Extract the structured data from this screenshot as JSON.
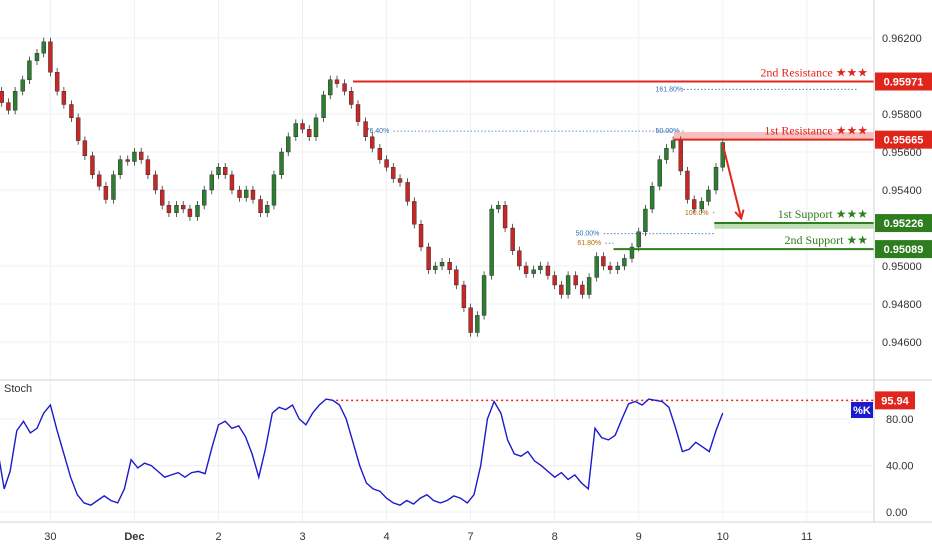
{
  "chart_data": {
    "type": "candlestick",
    "price_axis": {
      "ticks": [
        "0.96200",
        "0.95800",
        "0.95600",
        "0.95400",
        "0.95000",
        "0.94800",
        "0.94600"
      ],
      "tick_values": [
        0.962,
        0.958,
        0.956,
        0.954,
        0.95,
        0.948,
        0.946
      ],
      "range": [
        0.944,
        0.964
      ]
    },
    "time_axis": {
      "labels": [
        "30",
        "Dec",
        "2",
        "3",
        "4",
        "7",
        "8",
        "9",
        "10",
        "11"
      ],
      "positions": [
        0,
        1,
        2,
        3,
        4,
        5,
        6,
        7,
        8,
        9
      ],
      "range": [
        -0.6,
        9.8
      ]
    },
    "levels": [
      {
        "label": "2nd Resistance ★★★",
        "value": "0.95971",
        "price": 0.95971,
        "from": 3.6,
        "color": "#e0261c"
      },
      {
        "label": "1st Resistance ★★★",
        "value": "0.95665",
        "price": 0.95665,
        "from": 7.42,
        "color": "#e0261c"
      },
      {
        "label": "1st Support ★★★",
        "value": "0.95226",
        "price": 0.95226,
        "from": 7.9,
        "color": "#2e7d1e"
      },
      {
        "label": "2nd Support ★★",
        "value": "0.95089",
        "price": 0.95089,
        "from": 6.7,
        "color": "#2e7d1e"
      }
    ],
    "fib_labels": [
      {
        "text": "76.40%",
        "price": 0.9571,
        "x": 3.75,
        "line_to": 7.4
      },
      {
        "text": "161.80%",
        "price": 0.9593,
        "x": 7.2,
        "line_to": 9.6
      },
      {
        "text": "50.00%",
        "price": 0.9571,
        "x": 7.2,
        "line_to": 7.42
      },
      {
        "text": "50.00%",
        "price": 0.9517,
        "x": 6.25,
        "line_to": 7.9
      },
      {
        "text": "61.80%",
        "price": 0.9512,
        "x": 6.27,
        "line_to": 6.7
      },
      {
        "text": "100.0%",
        "price": 0.9528,
        "x": 7.55,
        "line_to": 7.9
      }
    ],
    "arrow": {
      "from": {
        "x": 8.0,
        "price": 0.9564
      },
      "to": {
        "x": 8.22,
        "price": 0.9525
      },
      "color": "#e0261c"
    },
    "candles_ohlc_mid": [
      [
        -0.75,
        0.9594
      ],
      [
        -0.66,
        0.9592
      ],
      [
        -0.58,
        0.9586
      ],
      [
        -0.5,
        0.9582
      ],
      [
        -0.42,
        0.9592
      ],
      [
        -0.33,
        0.9598
      ],
      [
        -0.25,
        0.9608
      ],
      [
        -0.16,
        0.9612
      ],
      [
        -0.08,
        0.9618
      ],
      [
        0.0,
        0.9602
      ],
      [
        0.08,
        0.9592
      ],
      [
        0.16,
        0.9585
      ],
      [
        0.25,
        0.9578
      ],
      [
        0.33,
        0.9566
      ],
      [
        0.41,
        0.9558
      ],
      [
        0.5,
        0.9548
      ],
      [
        0.58,
        0.9542
      ],
      [
        0.66,
        0.9535
      ],
      [
        0.75,
        0.9548
      ],
      [
        0.83,
        0.9556
      ],
      [
        0.92,
        0.9555
      ],
      [
        1.0,
        0.956
      ],
      [
        1.08,
        0.9556
      ],
      [
        1.16,
        0.9548
      ],
      [
        1.25,
        0.954
      ],
      [
        1.33,
        0.9532
      ],
      [
        1.41,
        0.9528
      ],
      [
        1.5,
        0.9532
      ],
      [
        1.58,
        0.953
      ],
      [
        1.66,
        0.9526
      ],
      [
        1.75,
        0.9532
      ],
      [
        1.83,
        0.954
      ],
      [
        1.92,
        0.9548
      ],
      [
        2.0,
        0.9552
      ],
      [
        2.08,
        0.9548
      ],
      [
        2.16,
        0.954
      ],
      [
        2.25,
        0.9536
      ],
      [
        2.33,
        0.954
      ],
      [
        2.41,
        0.9535
      ],
      [
        2.5,
        0.9528
      ],
      [
        2.58,
        0.9532
      ],
      [
        2.66,
        0.9548
      ],
      [
        2.75,
        0.956
      ],
      [
        2.83,
        0.9568
      ],
      [
        2.92,
        0.9575
      ],
      [
        3.0,
        0.9572
      ],
      [
        3.08,
        0.9568
      ],
      [
        3.16,
        0.9578
      ],
      [
        3.25,
        0.959
      ],
      [
        3.33,
        0.9598
      ],
      [
        3.41,
        0.9596
      ],
      [
        3.5,
        0.9592
      ],
      [
        3.58,
        0.9585
      ],
      [
        3.66,
        0.9576
      ],
      [
        3.75,
        0.9568
      ],
      [
        3.83,
        0.9562
      ],
      [
        3.92,
        0.9556
      ],
      [
        4.0,
        0.9552
      ],
      [
        4.08,
        0.9546
      ],
      [
        4.16,
        0.9544
      ],
      [
        4.25,
        0.9534
      ],
      [
        4.33,
        0.9522
      ],
      [
        4.41,
        0.951
      ],
      [
        4.5,
        0.9498
      ],
      [
        4.58,
        0.95
      ],
      [
        4.66,
        0.9502
      ],
      [
        4.75,
        0.9498
      ],
      [
        4.83,
        0.949
      ],
      [
        4.92,
        0.9478
      ],
      [
        5.0,
        0.9465
      ],
      [
        5.08,
        0.9474
      ],
      [
        5.16,
        0.9495
      ],
      [
        5.25,
        0.953
      ],
      [
        5.33,
        0.9532
      ],
      [
        5.41,
        0.952
      ],
      [
        5.5,
        0.9508
      ],
      [
        5.58,
        0.95
      ],
      [
        5.66,
        0.9496
      ],
      [
        5.75,
        0.9498
      ],
      [
        5.83,
        0.95
      ],
      [
        5.92,
        0.9495
      ],
      [
        6.0,
        0.949
      ],
      [
        6.08,
        0.9485
      ],
      [
        6.16,
        0.9495
      ],
      [
        6.25,
        0.949
      ],
      [
        6.33,
        0.9485
      ],
      [
        6.41,
        0.9494
      ],
      [
        6.5,
        0.9505
      ],
      [
        6.58,
        0.95
      ],
      [
        6.66,
        0.9498
      ],
      [
        6.75,
        0.95
      ],
      [
        6.83,
        0.9504
      ],
      [
        6.92,
        0.951
      ],
      [
        7.0,
        0.9518
      ],
      [
        7.08,
        0.953
      ],
      [
        7.16,
        0.9542
      ],
      [
        7.25,
        0.9556
      ],
      [
        7.33,
        0.9562
      ],
      [
        7.41,
        0.9566
      ],
      [
        7.5,
        0.955
      ],
      [
        7.58,
        0.9535
      ],
      [
        7.66,
        0.953
      ],
      [
        7.75,
        0.9534
      ],
      [
        7.83,
        0.954
      ],
      [
        7.92,
        0.9552
      ],
      [
        8.0,
        0.9565
      ]
    ],
    "stoch": {
      "label": "Stoch",
      "ticks": [
        "80.00",
        "40.00",
        "0.00"
      ],
      "tick_values": [
        80,
        40,
        0
      ],
      "range": [
        -5,
        110
      ],
      "current_tag": "%K",
      "level_value": "95.94",
      "level": 95.94,
      "k_points": [
        [
          -0.8,
          90
        ],
        [
          -0.7,
          75
        ],
        [
          -0.62,
          50
        ],
        [
          -0.55,
          20
        ],
        [
          -0.48,
          35
        ],
        [
          -0.4,
          70
        ],
        [
          -0.32,
          78
        ],
        [
          -0.24,
          68
        ],
        [
          -0.16,
          72
        ],
        [
          -0.08,
          85
        ],
        [
          0.0,
          92
        ],
        [
          0.08,
          70
        ],
        [
          0.16,
          50
        ],
        [
          0.24,
          30
        ],
        [
          0.32,
          15
        ],
        [
          0.4,
          8
        ],
        [
          0.48,
          6
        ],
        [
          0.56,
          10
        ],
        [
          0.64,
          14
        ],
        [
          0.72,
          10
        ],
        [
          0.8,
          8
        ],
        [
          0.88,
          20
        ],
        [
          0.96,
          45
        ],
        [
          1.04,
          38
        ],
        [
          1.12,
          42
        ],
        [
          1.2,
          40
        ],
        [
          1.28,
          35
        ],
        [
          1.36,
          30
        ],
        [
          1.44,
          32
        ],
        [
          1.52,
          34
        ],
        [
          1.6,
          30
        ],
        [
          1.68,
          34
        ],
        [
          1.76,
          35
        ],
        [
          1.84,
          33
        ],
        [
          1.92,
          55
        ],
        [
          2.0,
          75
        ],
        [
          2.08,
          78
        ],
        [
          2.16,
          72
        ],
        [
          2.24,
          74
        ],
        [
          2.32,
          65
        ],
        [
          2.4,
          50
        ],
        [
          2.48,
          30
        ],
        [
          2.56,
          55
        ],
        [
          2.64,
          85
        ],
        [
          2.72,
          90
        ],
        [
          2.8,
          88
        ],
        [
          2.88,
          92
        ],
        [
          2.96,
          80
        ],
        [
          3.04,
          75
        ],
        [
          3.12,
          85
        ],
        [
          3.2,
          92
        ],
        [
          3.28,
          97
        ],
        [
          3.36,
          96
        ],
        [
          3.44,
          92
        ],
        [
          3.52,
          80
        ],
        [
          3.6,
          60
        ],
        [
          3.68,
          40
        ],
        [
          3.76,
          25
        ],
        [
          3.84,
          20
        ],
        [
          3.92,
          18
        ],
        [
          4.0,
          12
        ],
        [
          4.08,
          8
        ],
        [
          4.16,
          6
        ],
        [
          4.24,
          10
        ],
        [
          4.32,
          7
        ],
        [
          4.4,
          12
        ],
        [
          4.48,
          15
        ],
        [
          4.56,
          10
        ],
        [
          4.64,
          8
        ],
        [
          4.72,
          10
        ],
        [
          4.8,
          14
        ],
        [
          4.88,
          12
        ],
        [
          4.96,
          8
        ],
        [
          5.04,
          15
        ],
        [
          5.12,
          40
        ],
        [
          5.2,
          80
        ],
        [
          5.28,
          95
        ],
        [
          5.36,
          85
        ],
        [
          5.44,
          62
        ],
        [
          5.52,
          50
        ],
        [
          5.6,
          48
        ],
        [
          5.68,
          52
        ],
        [
          5.76,
          44
        ],
        [
          5.84,
          40
        ],
        [
          5.92,
          35
        ],
        [
          6.0,
          30
        ],
        [
          6.08,
          34
        ],
        [
          6.16,
          28
        ],
        [
          6.24,
          32
        ],
        [
          6.32,
          25
        ],
        [
          6.4,
          20
        ],
        [
          6.48,
          72
        ],
        [
          6.56,
          64
        ],
        [
          6.64,
          62
        ],
        [
          6.72,
          66
        ],
        [
          6.8,
          80
        ],
        [
          6.88,
          93
        ],
        [
          6.96,
          95
        ],
        [
          7.04,
          92
        ],
        [
          7.12,
          97
        ],
        [
          7.2,
          96
        ],
        [
          7.28,
          95
        ],
        [
          7.36,
          90
        ],
        [
          7.44,
          72
        ],
        [
          7.52,
          52
        ],
        [
          7.6,
          54
        ],
        [
          7.68,
          60
        ],
        [
          7.76,
          56
        ],
        [
          7.84,
          52
        ],
        [
          7.92,
          70
        ],
        [
          8.0,
          85
        ]
      ]
    }
  }
}
